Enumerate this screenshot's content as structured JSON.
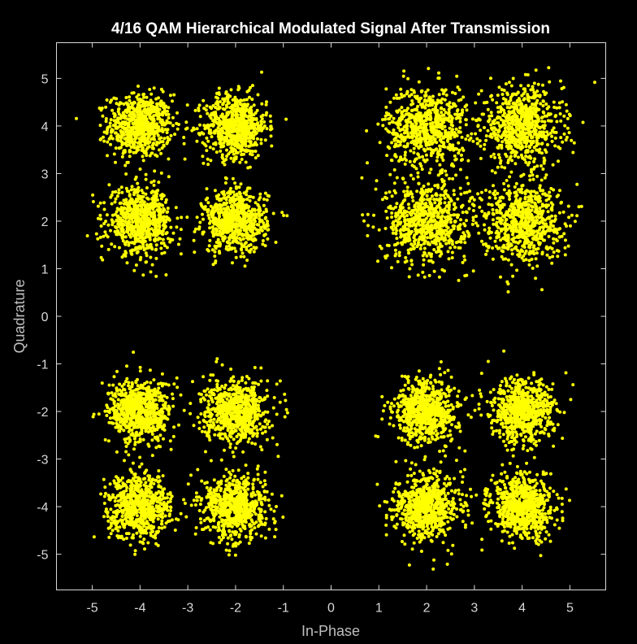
{
  "chart_data": {
    "type": "scatter",
    "title": "4/16 QAM Hierarchical Modulated Signal After Transmission",
    "xlabel": "In-Phase",
    "ylabel": "Quadrature",
    "xlim": [
      -5.75,
      5.75
    ],
    "ylim": [
      -5.75,
      5.75
    ],
    "xticks": [
      -5,
      -4,
      -3,
      -2,
      -1,
      0,
      1,
      2,
      3,
      4,
      5
    ],
    "yticks": [
      5,
      4,
      3,
      2,
      1,
      0,
      -1,
      -2,
      -3,
      -4,
      -5
    ],
    "xtick_labels": [
      "-5",
      "-4",
      "-3",
      "-2",
      "-1",
      "0",
      "1",
      "2",
      "3",
      "4",
      "5"
    ],
    "ytick_labels": [
      "5",
      "4",
      "3",
      "2",
      "1",
      "0",
      "-1",
      "-2",
      "-3",
      "-4",
      "-5"
    ],
    "grid": false,
    "background": "#000000",
    "marker_color": "#ffff00",
    "series": [
      {
        "marker": "point",
        "description": "received noisy symbols clustered around 16 constellation points",
        "cluster_centers": [
          [
            -4,
            4
          ],
          [
            -2,
            4
          ],
          [
            2,
            4
          ],
          [
            4,
            4
          ],
          [
            -4,
            2
          ],
          [
            -2,
            2
          ],
          [
            2,
            2
          ],
          [
            4,
            2
          ],
          [
            -4,
            -2
          ],
          [
            -2,
            -2
          ],
          [
            2,
            -2
          ],
          [
            4,
            -2
          ],
          [
            -4,
            -4
          ],
          [
            -2,
            -4
          ],
          [
            2,
            -4
          ],
          [
            4,
            -4
          ]
        ],
        "cluster_spread": [
          0.33,
          0.33,
          0.42,
          0.42,
          0.33,
          0.33,
          0.42,
          0.42,
          0.33,
          0.33,
          0.33,
          0.33,
          0.33,
          0.33,
          0.33,
          0.33
        ]
      }
    ]
  }
}
